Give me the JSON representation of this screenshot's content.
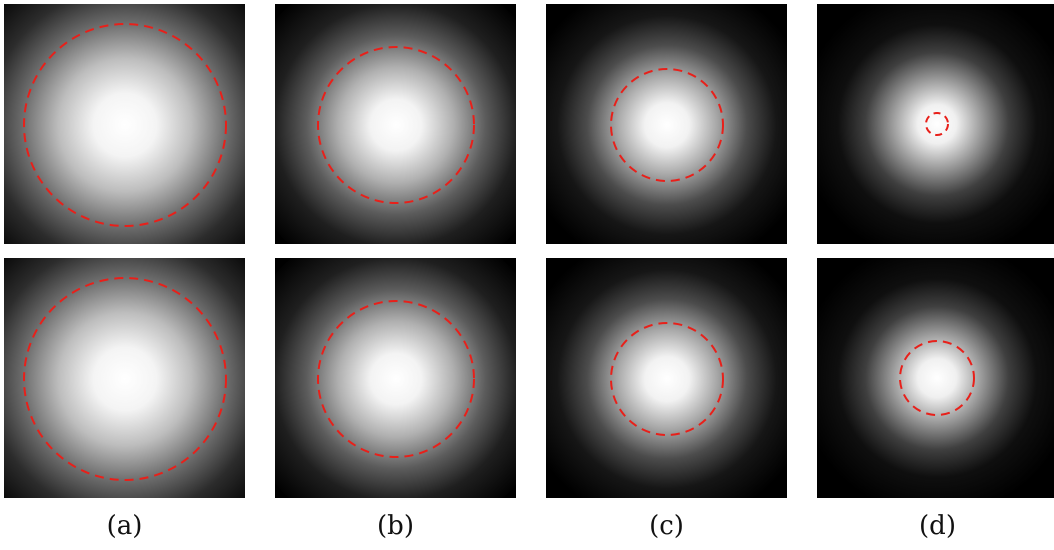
{
  "columns": [
    {
      "label": "(a)",
      "panels": [
        {
          "row": "top",
          "glow": "wide",
          "circle": "large"
        },
        {
          "row": "bottom",
          "glow": "wide",
          "circle": "large"
        }
      ]
    },
    {
      "label": "(b)",
      "panels": [
        {
          "row": "top",
          "glow": "medium",
          "circle": "medium-large"
        },
        {
          "row": "bottom",
          "glow": "medium",
          "circle": "medium-large"
        }
      ]
    },
    {
      "label": "(c)",
      "panels": [
        {
          "row": "top",
          "glow": "medium-narrow",
          "circle": "medium"
        },
        {
          "row": "bottom",
          "glow": "medium-narrow",
          "circle": "medium"
        }
      ]
    },
    {
      "label": "(d)",
      "panels": [
        {
          "row": "top",
          "glow": "narrow",
          "circle": "tiny"
        },
        {
          "row": "bottom",
          "glow": "narrow",
          "circle": "small"
        }
      ]
    }
  ],
  "colors": {
    "background": "#000000",
    "glow_center": "#ffffff",
    "circle_stroke": "#e8201a"
  }
}
